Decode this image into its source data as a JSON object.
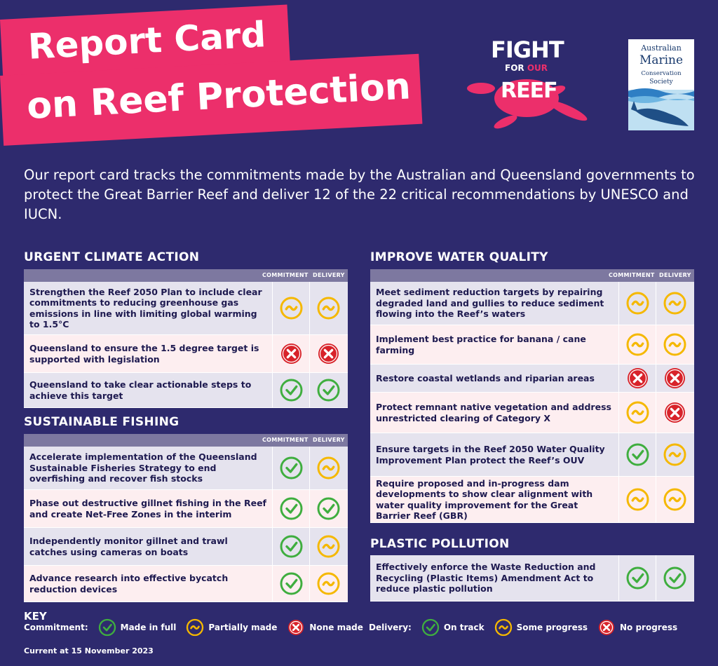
{
  "title": {
    "line1": "Report Card",
    "line2": "on Reef Protection"
  },
  "fight_logo": {
    "line1": "FIGHT",
    "line2_a": "FOR ",
    "line2_b": "OUR",
    "line3": "REEF"
  },
  "amcs_logo": {
    "line1": "Australian",
    "line2": "Marine",
    "line3": "Conservation",
    "line4": "Society"
  },
  "intro": "Our report card tracks the commitments made by the Australian and Queensland governments to protect the Great Barrier Reef and deliver 12 of the 22 critical recommendations by UNESCO and IUCN.",
  "columns": {
    "commitment": "COMMITMENT",
    "delivery": "DELIVERY"
  },
  "status_colors": {
    "made": "#3fae3f",
    "partial": "#f5b800",
    "none": "#d8232a"
  },
  "sections": {
    "climate": {
      "title": "URGENT CLIMATE ACTION",
      "items": [
        {
          "text": "Strengthen the Reef 2050 Plan to include clear commitments to reducing greenhouse gas emissions in line with limiting global warming to 1.5°C",
          "commitment": "partial",
          "delivery": "partial"
        },
        {
          "text": "Queensland to ensure the 1.5 degree target is supported with legislation",
          "commitment": "none",
          "delivery": "none"
        },
        {
          "text": "Queensland to take clear actionable steps to achieve this target",
          "commitment": "made",
          "delivery": "made"
        }
      ]
    },
    "fishing": {
      "title": "SUSTAINABLE FISHING",
      "items": [
        {
          "text": "Accelerate implementation of the Queensland Sustainable Fisheries Strategy to end overfishing and recover fish stocks",
          "commitment": "made",
          "delivery": "partial"
        },
        {
          "text": "Phase out destructive gillnet fishing in the Reef and create Net-Free Zones in the interim",
          "commitment": "made",
          "delivery": "made"
        },
        {
          "text": "Independently monitor gillnet and trawl catches using cameras on boats",
          "commitment": "made",
          "delivery": "partial"
        },
        {
          "text": "Advance research into effective bycatch reduction devices",
          "commitment": "made",
          "delivery": "partial"
        }
      ]
    },
    "water": {
      "title": "IMPROVE WATER QUALITY",
      "items": [
        {
          "text": "Meet sediment reduction targets by repairing degraded land and gullies to reduce sediment flowing into the Reef’s waters",
          "commitment": "partial",
          "delivery": "partial"
        },
        {
          "text": "Implement best practice for banana / cane farming",
          "commitment": "partial",
          "delivery": "partial"
        },
        {
          "text": "Restore coastal wetlands and riparian areas",
          "commitment": "none",
          "delivery": "none"
        },
        {
          "text": "Protect remnant native vegetation and address unrestricted clearing of Category X",
          "commitment": "partial",
          "delivery": "none"
        },
        {
          "text": "Ensure targets in the Reef 2050 Water Quality Improvement Plan protect the Reef’s OUV",
          "commitment": "made",
          "delivery": "partial"
        },
        {
          "text": "Require proposed and in-progress dam developments to show clear alignment with water quality improvement for the Great Barrier Reef (GBR)",
          "commitment": "partial",
          "delivery": "partial"
        }
      ]
    },
    "plastic": {
      "title": "PLASTIC POLLUTION",
      "items": [
        {
          "text": "Effectively enforce the Waste Reduction and Recycling (Plastic Items) Amendment Act to reduce plastic pollution",
          "commitment": "made",
          "delivery": "made"
        }
      ]
    }
  },
  "key": {
    "title": "KEY",
    "commitment_label": "Commitment:",
    "made": "Made in full",
    "partial": "Partially made",
    "none": "None made",
    "delivery_label": "Delivery:",
    "on_track": "On track",
    "some_progress": "Some progress",
    "no_progress": "No progress"
  },
  "current": "Current at 15 November 2023"
}
